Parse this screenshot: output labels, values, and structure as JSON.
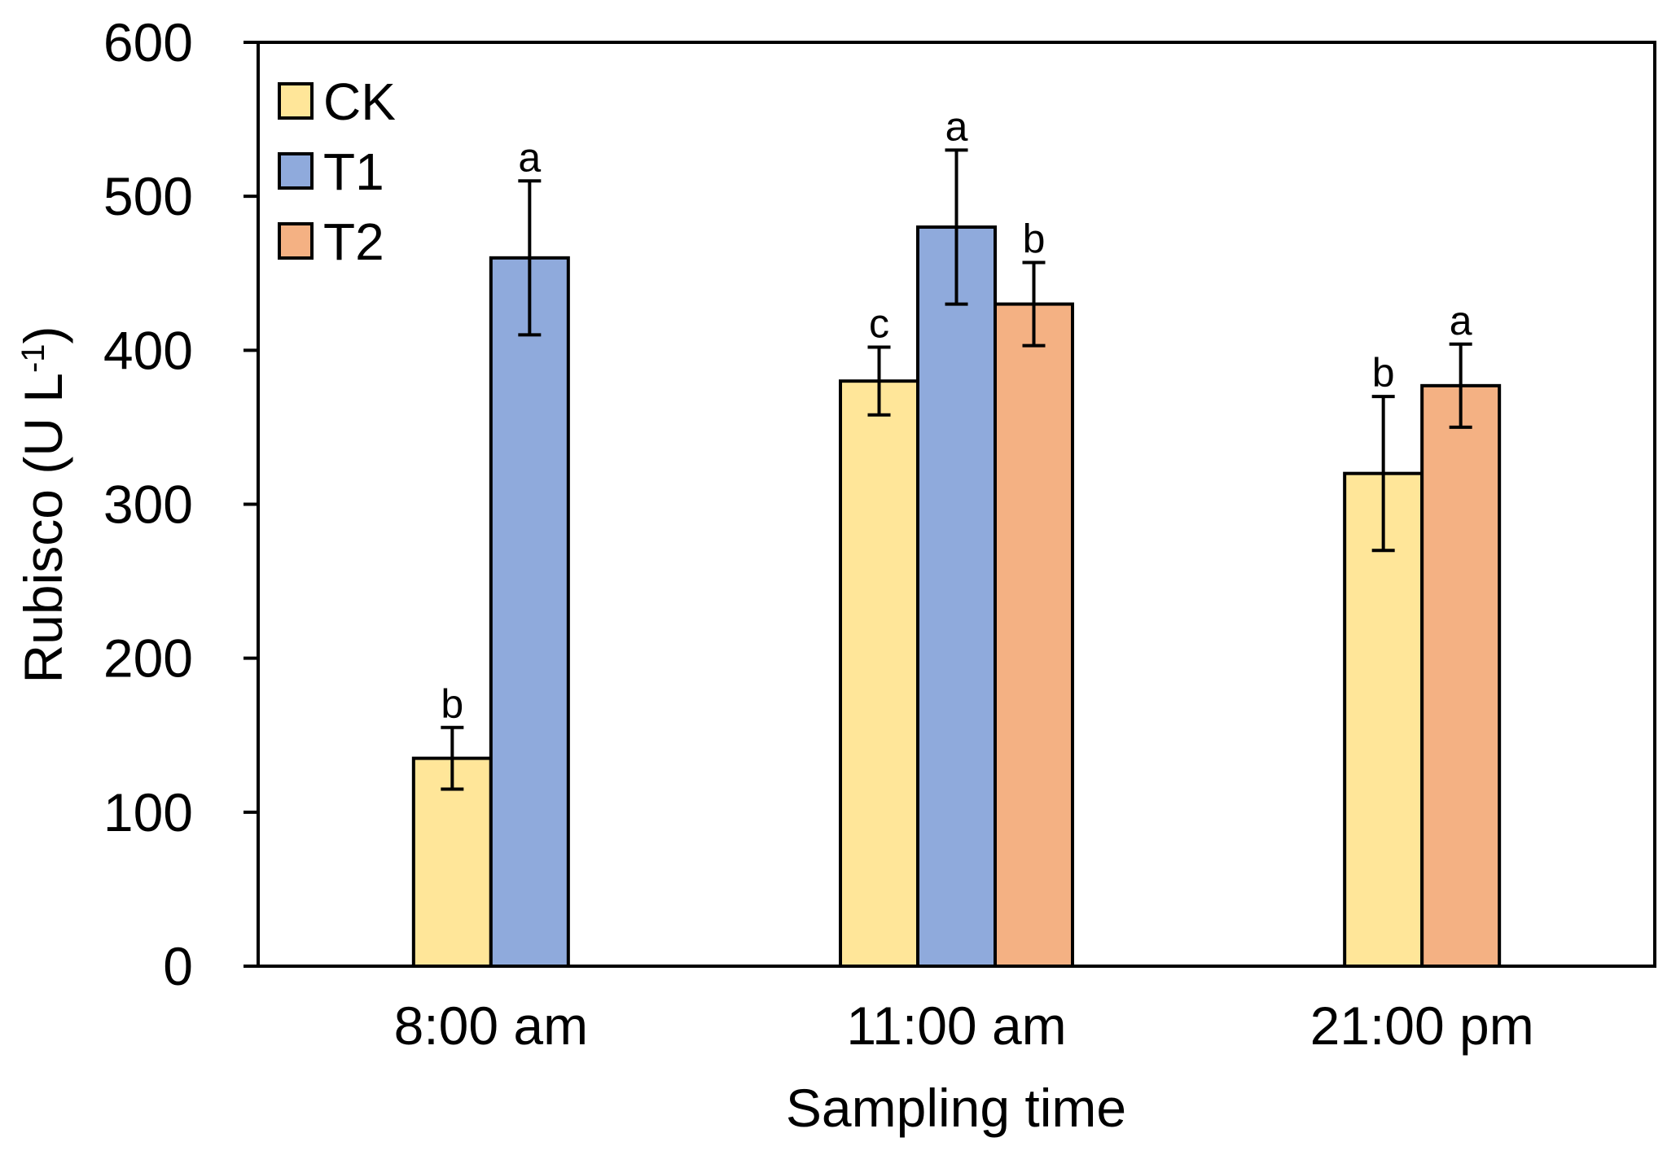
{
  "chart_data": {
    "type": "bar",
    "title": "",
    "xlabel": "Sampling time",
    "ylabel_main": "Rubisco (U L",
    "ylabel_sup": "-1",
    "ylabel_close": ")",
    "ylim": [
      0,
      600
    ],
    "yticks": [
      0,
      100,
      200,
      300,
      400,
      500,
      600
    ],
    "legend_position": "top-left",
    "categories": [
      "8:00 am",
      "11:00 am",
      "21:00 pm"
    ],
    "series": [
      {
        "name": "CK",
        "color": "#FFE699",
        "values": [
          135,
          380,
          320
        ],
        "errors": [
          20,
          22,
          50
        ],
        "labels": [
          "b",
          "c",
          "b"
        ]
      },
      {
        "name": "T1",
        "color": "#8FAADC",
        "values": [
          460,
          480,
          null
        ],
        "errors": [
          50,
          50,
          null
        ],
        "labels": [
          "a",
          "a",
          null
        ]
      },
      {
        "name": "T2",
        "color": "#F4B183",
        "values": [
          null,
          430,
          377
        ],
        "errors": [
          null,
          27,
          27
        ],
        "labels": [
          null,
          "b",
          "a"
        ]
      }
    ]
  }
}
